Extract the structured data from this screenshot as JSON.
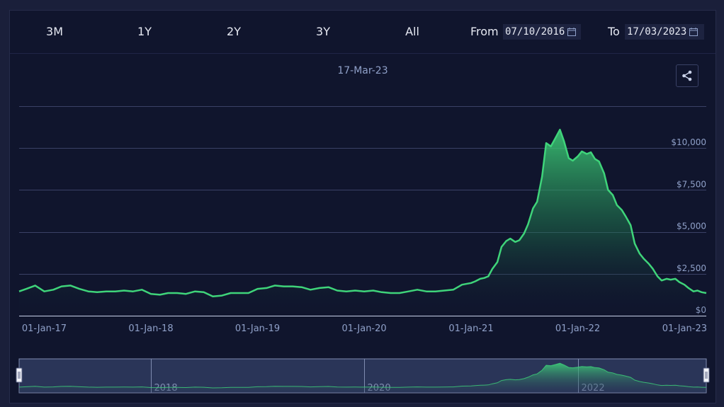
{
  "toolbar": {
    "ranges": [
      "3M",
      "1Y",
      "2Y",
      "3Y",
      "All"
    ],
    "from_label": "From",
    "from_value": "07/10/2016",
    "to_label": "To",
    "to_value": "17/03/2023"
  },
  "colors": {
    "line": "#3fd47a",
    "grid": "#3a4166",
    "axis_text": "#8fa0c8",
    "background": "#10152d"
  },
  "chart_data": {
    "type": "area",
    "title": "17-Mar-23",
    "x_tick_labels": [
      "01-Jan-17",
      "01-Jan-18",
      "01-Jan-19",
      "01-Jan-20",
      "01-Jan-21",
      "01-Jan-22",
      "01-Jan-23"
    ],
    "y_tick_labels": [
      "$0",
      "$2,500",
      "$5,000",
      "$7,500",
      "$10,000"
    ],
    "y_ticks": [
      0,
      2500,
      5000,
      7500,
      10000
    ],
    "xlim": [
      "2016-10-07",
      "2023-03-17"
    ],
    "ylim": [
      0,
      12500
    ],
    "grid": true,
    "navigator_labels": [
      "2018",
      "2020",
      "2022"
    ],
    "series": [
      {
        "x": [
          "2016-10-07",
          "2016-11-01",
          "2016-12-01",
          "2017-01-01",
          "2017-02-01",
          "2017-03-01",
          "2017-04-01",
          "2017-05-01",
          "2017-06-01",
          "2017-07-01",
          "2017-08-01",
          "2017-09-01",
          "2017-10-01",
          "2017-11-01",
          "2017-12-01",
          "2018-01-01",
          "2018-02-01",
          "2018-03-01",
          "2018-04-01",
          "2018-05-01",
          "2018-06-01",
          "2018-07-01",
          "2018-08-01",
          "2018-09-01",
          "2018-10-01",
          "2018-11-01",
          "2018-12-01",
          "2019-01-01",
          "2019-02-01",
          "2019-03-01",
          "2019-04-01",
          "2019-05-01",
          "2019-06-01",
          "2019-07-01",
          "2019-08-01",
          "2019-09-01",
          "2019-10-01",
          "2019-11-01",
          "2019-12-01",
          "2020-01-01",
          "2020-02-01",
          "2020-03-01",
          "2020-04-01",
          "2020-05-01",
          "2020-06-01",
          "2020-07-01",
          "2020-08-01",
          "2020-09-01",
          "2020-10-01",
          "2020-11-01",
          "2020-12-01",
          "2021-01-01",
          "2021-01-15",
          "2021-02-01",
          "2021-02-15",
          "2021-03-01",
          "2021-03-15",
          "2021-04-01",
          "2021-04-15",
          "2021-05-01",
          "2021-05-15",
          "2021-06-01",
          "2021-06-15",
          "2021-07-01",
          "2021-07-15",
          "2021-08-01",
          "2021-08-15",
          "2021-09-01",
          "2021-09-15",
          "2021-10-01",
          "2021-10-15",
          "2021-11-01",
          "2021-11-15",
          "2021-12-01",
          "2021-12-15",
          "2022-01-01",
          "2022-01-15",
          "2022-02-01",
          "2022-02-15",
          "2022-03-01",
          "2022-03-15",
          "2022-04-01",
          "2022-04-15",
          "2022-05-01",
          "2022-05-15",
          "2022-06-01",
          "2022-06-15",
          "2022-07-01",
          "2022-07-15",
          "2022-08-01",
          "2022-08-15",
          "2022-09-01",
          "2022-09-15",
          "2022-10-01",
          "2022-10-15",
          "2022-11-01",
          "2022-11-15",
          "2022-12-01",
          "2022-12-15",
          "2023-01-01",
          "2023-01-15",
          "2023-02-01",
          "2023-02-15",
          "2023-03-01",
          "2023-03-17"
        ],
        "values": [
          1450,
          1600,
          1800,
          1450,
          1550,
          1750,
          1800,
          1600,
          1450,
          1400,
          1450,
          1450,
          1500,
          1450,
          1550,
          1300,
          1250,
          1350,
          1350,
          1300,
          1450,
          1400,
          1150,
          1200,
          1350,
          1350,
          1350,
          1600,
          1650,
          1800,
          1750,
          1750,
          1700,
          1550,
          1650,
          1700,
          1500,
          1450,
          1500,
          1450,
          1500,
          1400,
          1350,
          1350,
          1450,
          1550,
          1450,
          1450,
          1500,
          1550,
          1850,
          1950,
          2050,
          2200,
          2250,
          2350,
          2800,
          3200,
          4100,
          4450,
          4600,
          4400,
          4500,
          4900,
          5450,
          6400,
          6800,
          8300,
          10300,
          10100,
          10550,
          11100,
          10400,
          9400,
          9250,
          9500,
          9800,
          9650,
          9750,
          9350,
          9200,
          8500,
          7500,
          7200,
          6600,
          6300,
          5900,
          5400,
          4300,
          3700,
          3400,
          3100,
          2800,
          2350,
          2100,
          2200,
          2150,
          2200,
          2000,
          1850,
          1650,
          1450,
          1500,
          1400,
          1350
        ]
      }
    ]
  }
}
